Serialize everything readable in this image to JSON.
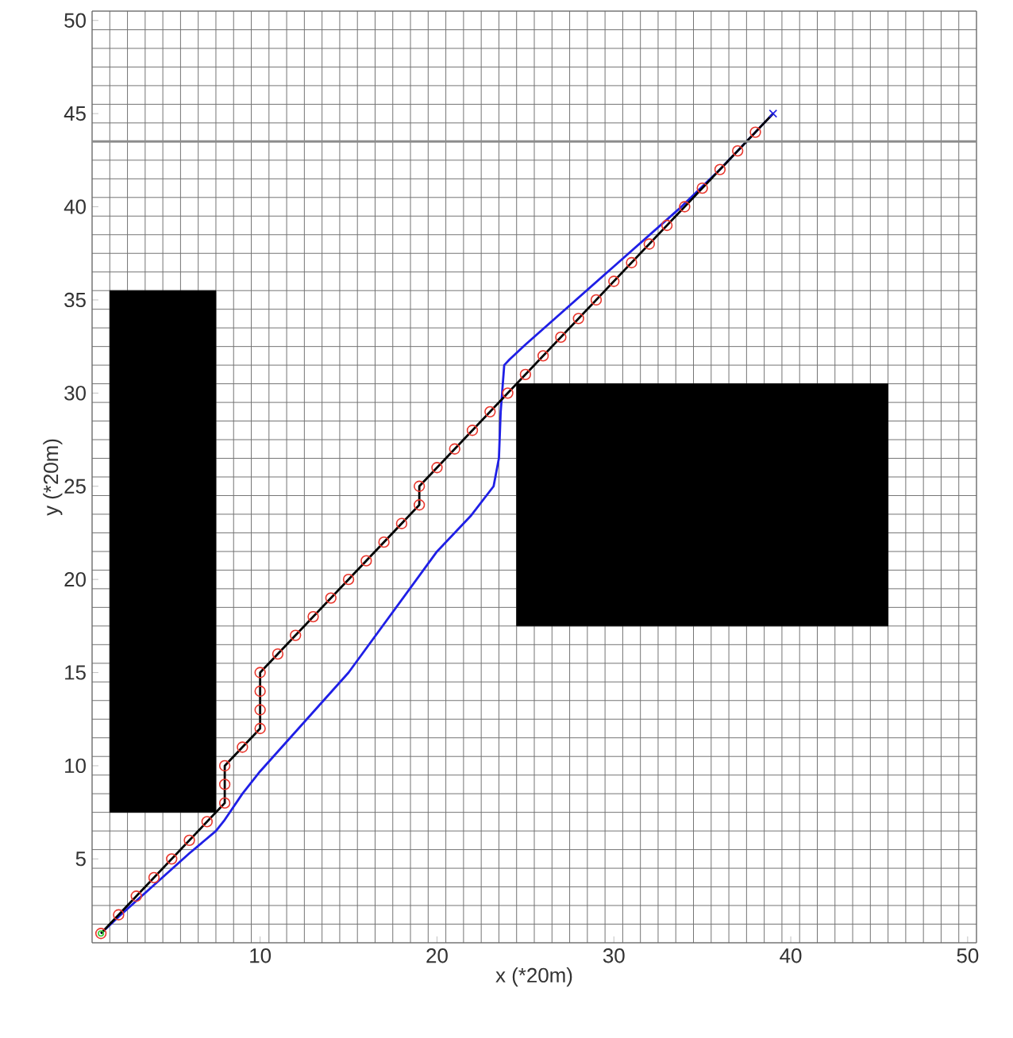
{
  "chart_data": {
    "type": "line",
    "xlabel": "x (*20m)",
    "ylabel": "y (*20m)",
    "xlim": [
      0.5,
      50.5
    ],
    "ylim": [
      0.5,
      50.5
    ],
    "xticks": [
      10,
      20,
      30,
      40,
      50
    ],
    "yticks": [
      5,
      10,
      15,
      20,
      25,
      30,
      35,
      40,
      45,
      50
    ],
    "grid": true,
    "ref_lines": [
      {
        "axis": "y",
        "value": 43.5,
        "color": "#8c8c8c"
      }
    ],
    "series": [
      {
        "type": "area",
        "color": "#000000",
        "x": [
          1.5,
          1.5,
          7.5,
          7.5
        ],
        "values": [
          7.5,
          35.5,
          35.5,
          7.5
        ]
      },
      {
        "type": "area",
        "color": "#000000",
        "x": [
          24.5,
          24.5,
          45.5,
          45.5
        ],
        "values": [
          17.5,
          30.5,
          30.5,
          17.5
        ]
      },
      {
        "color": "#1f1fe6",
        "line_style": "solid",
        "marker": "none",
        "x": [
          1,
          2,
          4,
          6,
          7.5,
          8,
          9,
          10,
          15,
          20,
          21.9,
          23.2,
          23.5,
          23.6,
          23.8,
          24.1,
          25,
          30,
          33.7,
          36,
          39
        ],
        "values": [
          1,
          1.9,
          3.6,
          5.3,
          6.5,
          7.1,
          8.5,
          9.7,
          15,
          21.5,
          23.4,
          25,
          26.5,
          29,
          31.5,
          31.8,
          32.6,
          36.8,
          39.9,
          42,
          45
        ]
      },
      {
        "type": "scatter",
        "color": "#e8382e",
        "marker": "circle",
        "x": [
          1,
          2,
          3,
          4,
          5,
          6,
          7,
          8,
          8,
          8,
          9,
          10,
          10,
          10,
          10,
          11,
          12,
          13,
          14,
          15,
          16,
          17,
          18,
          19,
          19,
          20,
          21,
          22,
          23,
          24,
          25,
          26,
          27,
          28,
          29,
          30,
          31,
          32,
          33,
          34,
          35,
          36,
          37,
          38
        ],
        "values": [
          1,
          2,
          3,
          4,
          5,
          6,
          7,
          8,
          9,
          10,
          11,
          12,
          13,
          14,
          15,
          16,
          17,
          18,
          19,
          20,
          21,
          22,
          23,
          24,
          25,
          26,
          27,
          28,
          29,
          30,
          31,
          32,
          33,
          34,
          35,
          36,
          37,
          38,
          39,
          40,
          41,
          42,
          43,
          44
        ]
      },
      {
        "color": "#000000",
        "line_style": "solid",
        "marker": "none",
        "x": [
          1,
          8,
          8,
          10,
          10,
          19,
          19,
          39
        ],
        "values": [
          1,
          8,
          10,
          12,
          15,
          24,
          25,
          45
        ]
      },
      {
        "type": "scatter",
        "color": "#33cc33",
        "marker": "circle",
        "x": [
          1
        ],
        "values": [
          1
        ]
      },
      {
        "type": "scatter",
        "color": "#1f1fe6",
        "marker": "cross",
        "x": [
          39
        ],
        "values": [
          45
        ]
      }
    ]
  }
}
